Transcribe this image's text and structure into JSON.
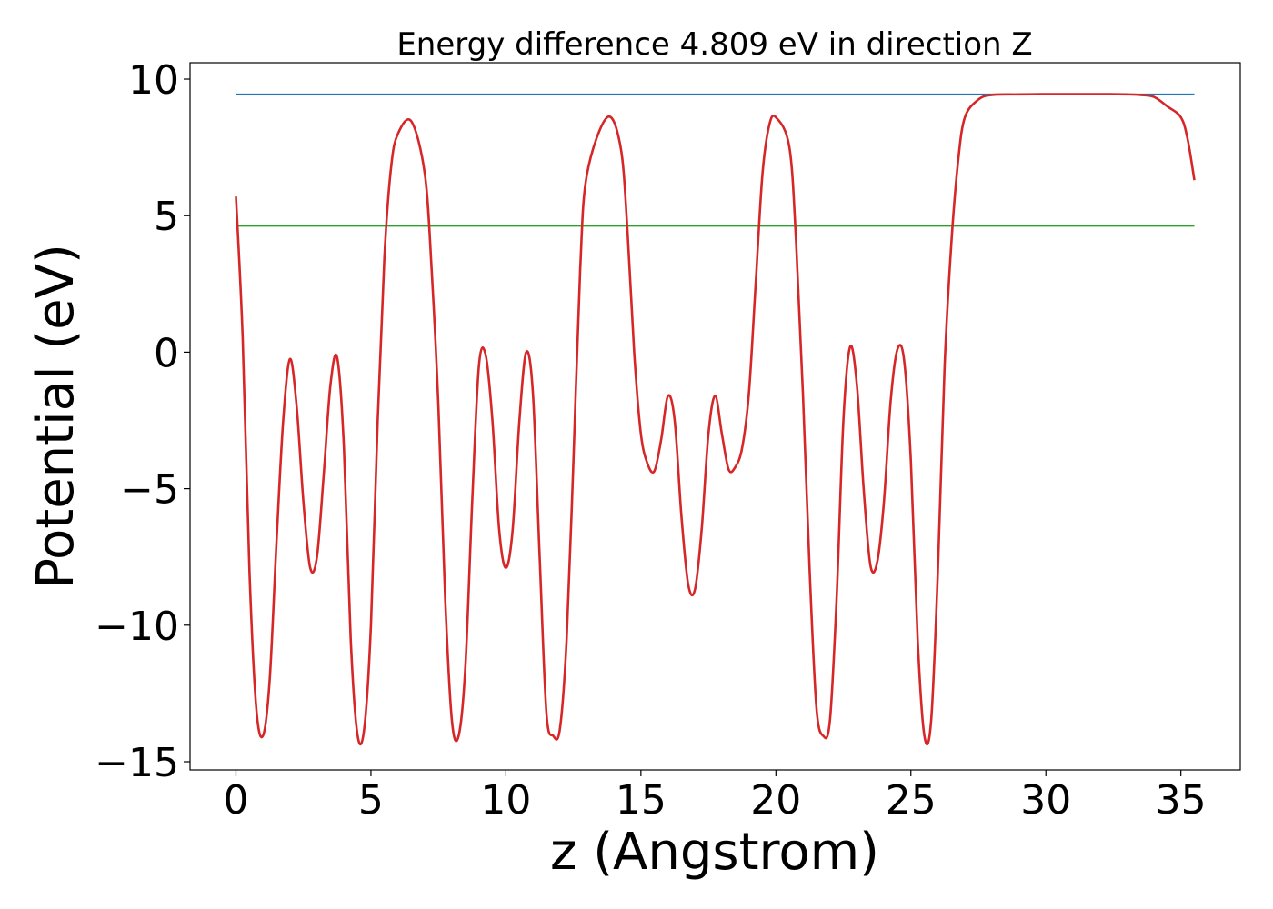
{
  "chart_data": {
    "type": "line",
    "title": "Energy difference 4.809 eV in direction Z",
    "xlabel": "z (Angstrom)",
    "ylabel": "Potential (eV)",
    "xlim": [
      -1.7,
      37.2
    ],
    "ylim": [
      -15.3,
      10.6
    ],
    "xticks": [
      0,
      5,
      10,
      15,
      20,
      25,
      30,
      35
    ],
    "yticks": [
      10,
      5,
      0,
      -5,
      -10,
      -15
    ],
    "xtick_labels": [
      "0",
      "5",
      "10",
      "15",
      "20",
      "25",
      "30",
      "35"
    ],
    "ytick_labels": [
      "10",
      "5",
      "0",
      "−5",
      "−10",
      "−15"
    ],
    "grid": false,
    "series": [
      {
        "color": "#1f77b4",
        "style": "horizontal",
        "x": [
          0,
          35.5
        ],
        "y": [
          9.44,
          9.44
        ]
      },
      {
        "color": "#2ca02c",
        "style": "horizontal",
        "x": [
          0,
          35.5
        ],
        "y": [
          4.63,
          4.63
        ]
      },
      {
        "color": "#d62728",
        "style": "smooth",
        "x": [
          0,
          0.25,
          0.5,
          0.75,
          1.0,
          1.25,
          1.5,
          1.75,
          2.0,
          2.25,
          2.5,
          2.75,
          3.0,
          3.25,
          3.5,
          3.75,
          4.0,
          4.25,
          4.5,
          4.75,
          5.0,
          5.25,
          5.5,
          5.75,
          6.0,
          6.5,
          7.0,
          7.25,
          7.5,
          7.75,
          8.0,
          8.25,
          8.5,
          8.75,
          9.0,
          9.25,
          9.5,
          9.75,
          10.0,
          10.25,
          10.5,
          10.75,
          11.0,
          11.25,
          11.5,
          11.75,
          12.0,
          12.25,
          12.5,
          12.75,
          13.0,
          13.75,
          14.25,
          14.5,
          14.75,
          15.0,
          15.25,
          15.5,
          15.75,
          16.0,
          16.25,
          16.5,
          16.75,
          17.0,
          17.25,
          17.5,
          17.75,
          18.0,
          18.25,
          18.5,
          18.75,
          19.0,
          19.25,
          19.5,
          19.75,
          20.0,
          20.5,
          20.75,
          21.0,
          21.25,
          21.5,
          21.75,
          22.0,
          22.25,
          22.5,
          22.75,
          23.0,
          23.25,
          23.5,
          23.75,
          24.0,
          24.25,
          24.5,
          24.75,
          25.0,
          25.25,
          25.5,
          25.75,
          26.0,
          26.25,
          26.5,
          26.75,
          27.0,
          27.5,
          28.0,
          29.0,
          30.0,
          31.0,
          32.0,
          33.0,
          33.5,
          34.0,
          34.5,
          35.0,
          35.25,
          35.5
        ],
        "y": [
          5.7,
          0.5,
          -8.0,
          -13.0,
          -14.05,
          -12.0,
          -7.0,
          -2.5,
          -0.25,
          -2.0,
          -5.5,
          -7.9,
          -7.5,
          -4.5,
          -1.2,
          -0.2,
          -3.5,
          -10.5,
          -14.0,
          -13.8,
          -10.0,
          -2.5,
          3.5,
          6.8,
          8.0,
          8.45,
          6.5,
          3.0,
          -2.0,
          -9.0,
          -13.5,
          -14.05,
          -11.5,
          -5.5,
          -0.5,
          -0.1,
          -2.5,
          -6.5,
          -7.9,
          -6.5,
          -2.5,
          0.0,
          -1.5,
          -7.5,
          -13.2,
          -14.05,
          -13.8,
          -10.5,
          -4.0,
          3.0,
          6.5,
          8.6,
          7.5,
          4.5,
          0.0,
          -3.0,
          -4.1,
          -4.35,
          -3.2,
          -1.6,
          -2.5,
          -6.0,
          -8.5,
          -8.7,
          -6.5,
          -3.0,
          -1.6,
          -3.0,
          -4.3,
          -4.2,
          -3.5,
          -1.5,
          2.5,
          6.5,
          8.3,
          8.6,
          7.5,
          4.0,
          -1.5,
          -8.0,
          -13.0,
          -14.05,
          -13.5,
          -9.0,
          -2.5,
          0.2,
          -1.2,
          -5.0,
          -7.8,
          -7.7,
          -5.5,
          -1.8,
          0.1,
          -0.3,
          -4.0,
          -10.5,
          -14.05,
          -13.5,
          -8.0,
          -0.5,
          4.0,
          7.0,
          8.6,
          9.25,
          9.42,
          9.44,
          9.45,
          9.45,
          9.45,
          9.44,
          9.42,
          9.35,
          9.0,
          8.6,
          7.8,
          6.3
        ]
      }
    ]
  }
}
